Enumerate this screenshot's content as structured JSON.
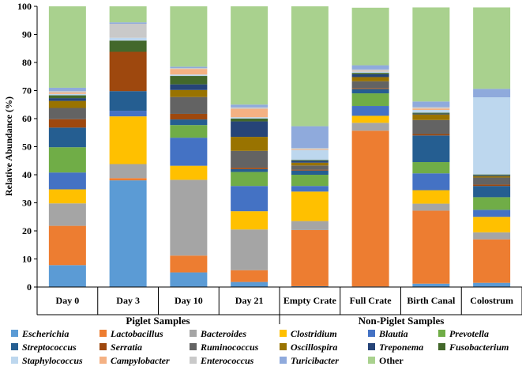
{
  "chart_data": {
    "type": "bar",
    "stacked": true,
    "ylabel": "Relative Abundance (%)",
    "ylim": [
      0,
      100
    ],
    "yticks": [
      0,
      10,
      20,
      30,
      40,
      50,
      60,
      70,
      80,
      90,
      100
    ],
    "grid": false,
    "legend_position": "bottom",
    "categories": [
      "Day 0",
      "Day 3",
      "Day 10",
      "Day 21",
      "Empty Crate",
      "Full Crate",
      "Birth Canal",
      "Colostrum"
    ],
    "groups": [
      {
        "label": "Piglet Samples",
        "categories": [
          "Day 0",
          "Day 3",
          "Day 10",
          "Day 21"
        ]
      },
      {
        "label": "Non-Piglet Samples",
        "categories": [
          "Empty Crate",
          "Full Crate",
          "Birth Canal",
          "Colostrum"
        ]
      }
    ],
    "series": [
      {
        "name": "Escherichia",
        "color": "#5B9BD5",
        "italic": true,
        "values": [
          7.8,
          38.0,
          5.2,
          1.8,
          0.3,
          0.2,
          1.2,
          1.5
        ]
      },
      {
        "name": "Lactobacillus",
        "color": "#ED7D31",
        "italic": true,
        "values": [
          14.0,
          0.8,
          6.0,
          4.2,
          20.0,
          55.5,
          26.0,
          15.5
        ]
      },
      {
        "name": "Bacteroides",
        "color": "#A5A5A5",
        "italic": true,
        "values": [
          8.0,
          5.0,
          27.0,
          14.5,
          3.2,
          2.8,
          2.5,
          2.5
        ]
      },
      {
        "name": "Clostridium",
        "color": "#FFC000",
        "italic": true,
        "values": [
          5.0,
          17.0,
          5.0,
          6.5,
          10.5,
          2.5,
          4.8,
          5.5
        ]
      },
      {
        "name": "Blautia",
        "color": "#4472C4",
        "italic": true,
        "values": [
          6.0,
          2.0,
          10.0,
          9.0,
          2.0,
          3.5,
          6.0,
          2.5
        ]
      },
      {
        "name": "Prevotella",
        "color": "#70AD47",
        "italic": true,
        "values": [
          9.0,
          0.0,
          4.5,
          5.0,
          4.0,
          4.5,
          4.0,
          4.5
        ]
      },
      {
        "name": "Streptococcus",
        "color": "#255E91",
        "italic": true,
        "values": [
          7.0,
          7.0,
          2.0,
          1.0,
          1.5,
          1.5,
          9.5,
          4.0
        ]
      },
      {
        "name": "Serratia",
        "color": "#9E480E",
        "italic": true,
        "values": [
          3.0,
          14.0,
          2.0,
          0.5,
          0.3,
          0.3,
          0.5,
          0.5
        ]
      },
      {
        "name": "Ruminococcus",
        "color": "#636363",
        "italic": true,
        "values": [
          4.0,
          0.0,
          6.0,
          6.0,
          1.5,
          2.5,
          5.0,
          2.5
        ]
      },
      {
        "name": "Oscillospira",
        "color": "#997300",
        "italic": true,
        "values": [
          2.5,
          0.0,
          2.5,
          5.0,
          1.0,
          1.5,
          2.0,
          0.5
        ]
      },
      {
        "name": "Treponema",
        "color": "#264478",
        "italic": true,
        "values": [
          1.0,
          0.0,
          2.0,
          5.5,
          0.7,
          1.0,
          0.3,
          0.3
        ]
      },
      {
        "name": "Fusobacterium",
        "color": "#43682B",
        "italic": true,
        "values": [
          1.0,
          4.0,
          3.0,
          1.0,
          0.3,
          0.5,
          0.3,
          0.3
        ]
      },
      {
        "name": "Staphylococcus",
        "color": "#BDD7EE",
        "italic": true,
        "values": [
          0.5,
          1.0,
          0.5,
          0.5,
          3.5,
          0.5,
          1.0,
          27.5
        ]
      },
      {
        "name": "Campylobacter",
        "color": "#F4B183",
        "italic": true,
        "values": [
          0.5,
          0.0,
          2.0,
          3.0,
          0.2,
          0.2,
          0.5,
          0.0
        ]
      },
      {
        "name": "Enterococcus",
        "color": "#C9C9C9",
        "italic": true,
        "values": [
          0.5,
          5.0,
          0.3,
          0.5,
          0.5,
          0.5,
          0.5,
          0.0
        ]
      },
      {
        "name": "Turicibacter",
        "color": "#8FAADC",
        "italic": true,
        "values": [
          1.2,
          0.5,
          0.5,
          1.0,
          7.8,
          1.5,
          2.0,
          3.0
        ]
      },
      {
        "name": "Other",
        "color": "#A9D18E",
        "italic": false,
        "values": [
          29.0,
          6.0,
          21.5,
          35.0,
          43.0,
          20.5,
          33.5,
          29.0
        ]
      }
    ]
  }
}
